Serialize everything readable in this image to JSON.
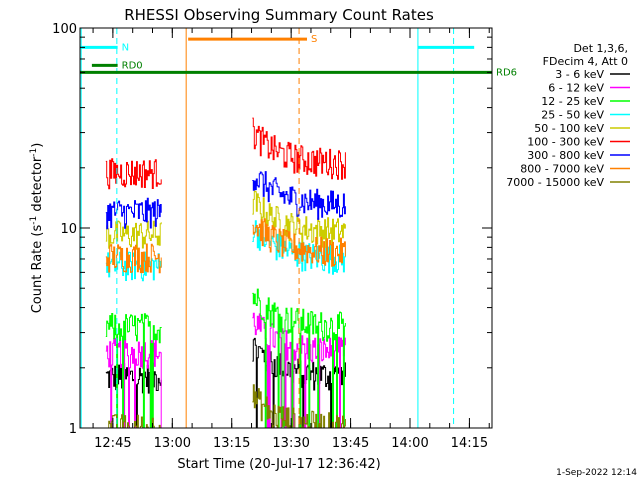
{
  "chart_data": {
    "type": "line",
    "title": "RHESSI Observing Summary Count Rates",
    "xlabel": "Start Time (20-Jul-17 12:36:42)",
    "ylabel_main": "Count Rate (s",
    "ylabel_sup1": "-1",
    "ylabel_mid": " detector",
    "ylabel_sup2": "-1",
    "ylabel_end": ")",
    "yscale": "log",
    "ylim": [
      1,
      100
    ],
    "xlim_minutes": [
      0,
      104
    ],
    "y_ticks": [
      {
        "value": 100,
        "label": "100"
      },
      {
        "value": 10,
        "label": "10"
      },
      {
        "value": 1,
        "label": "1"
      }
    ],
    "x_ticks": [
      {
        "minute": 8.3,
        "label": "12:45"
      },
      {
        "minute": 23.3,
        "label": "13:00"
      },
      {
        "minute": 38.3,
        "label": "13:15"
      },
      {
        "minute": 53.3,
        "label": "13:30"
      },
      {
        "minute": 68.3,
        "label": "13:45"
      },
      {
        "minute": 83.3,
        "label": "14:00"
      },
      {
        "minute": 98.3,
        "label": "14:15"
      }
    ],
    "legend_header": [
      "Det 1,3,6,",
      "FDecim 4, Att 0"
    ],
    "series": [
      {
        "name": "3 - 6 keV",
        "color": "#000000",
        "level_a": 1.8,
        "level_b": 1.8
      },
      {
        "name": "6 - 12 keV",
        "color": "#ff00ff",
        "level_a": 2.4,
        "level_b": 2.4
      },
      {
        "name": "12 - 25 keV",
        "color": "#00ff00",
        "level_a": 3.2,
        "level_b": 3.2
      },
      {
        "name": "25 - 50 keV",
        "color": "#00ffff",
        "level_a": 6.5,
        "level_b": 7.0
      },
      {
        "name": "50 - 100 keV",
        "color": "#cccc00",
        "level_a": 9.3,
        "level_b": 9.5
      },
      {
        "name": "100 - 300 keV",
        "color": "#ff0000",
        "level_a": 19.0,
        "level_b": 21.0
      },
      {
        "name": "300 - 800 keV",
        "color": "#0000ff",
        "level_a": 12.0,
        "level_b": 13.0
      },
      {
        "name": "800 - 7000 keV",
        "color": "#ff8000",
        "level_a": 7.2,
        "level_b": 7.5
      },
      {
        "name": "7000 - 15000 keV",
        "color": "#808000",
        "level_a": 1.0,
        "level_b": 1.0
      }
    ],
    "segments": [
      {
        "start_minute": 6.5,
        "end_minute": 20.5
      },
      {
        "start_minute": 43.5,
        "end_minute": 67.0
      }
    ],
    "flag_bars": [
      {
        "label": "N",
        "color": "#00ffff",
        "start_minute": 0.0,
        "end_minute": 9.5,
        "y_value": 80
      },
      {
        "label": "RD0",
        "color": "#008000",
        "start_minute": 3.0,
        "end_minute": 9.5,
        "y_value": 65
      },
      {
        "label": "RD6",
        "color": "#008000",
        "start_minute": 0.0,
        "end_minute": 104,
        "y_value": 60
      },
      {
        "label": "S",
        "color": "#ff8000",
        "start_minute": 27.3,
        "end_minute": 57.3,
        "y_value": 88
      },
      {
        "label": "",
        "color": "#00ffff",
        "start_minute": 85.3,
        "end_minute": 99.5,
        "y_value": 80
      }
    ],
    "vertical_lines": [
      {
        "minute": 0.3,
        "color": "#00ffff",
        "dashed": false
      },
      {
        "minute": 9.3,
        "color": "#00ffff",
        "dashed": true
      },
      {
        "minute": 26.8,
        "color": "#ff8000",
        "dashed": false
      },
      {
        "minute": 55.3,
        "color": "#ff8000",
        "dashed": true
      },
      {
        "minute": 85.3,
        "color": "#00ffff",
        "dashed": false
      },
      {
        "minute": 94.3,
        "color": "#00ffff",
        "dashed": true
      }
    ],
    "footer_date": "1-Sep-2022 12:14"
  }
}
